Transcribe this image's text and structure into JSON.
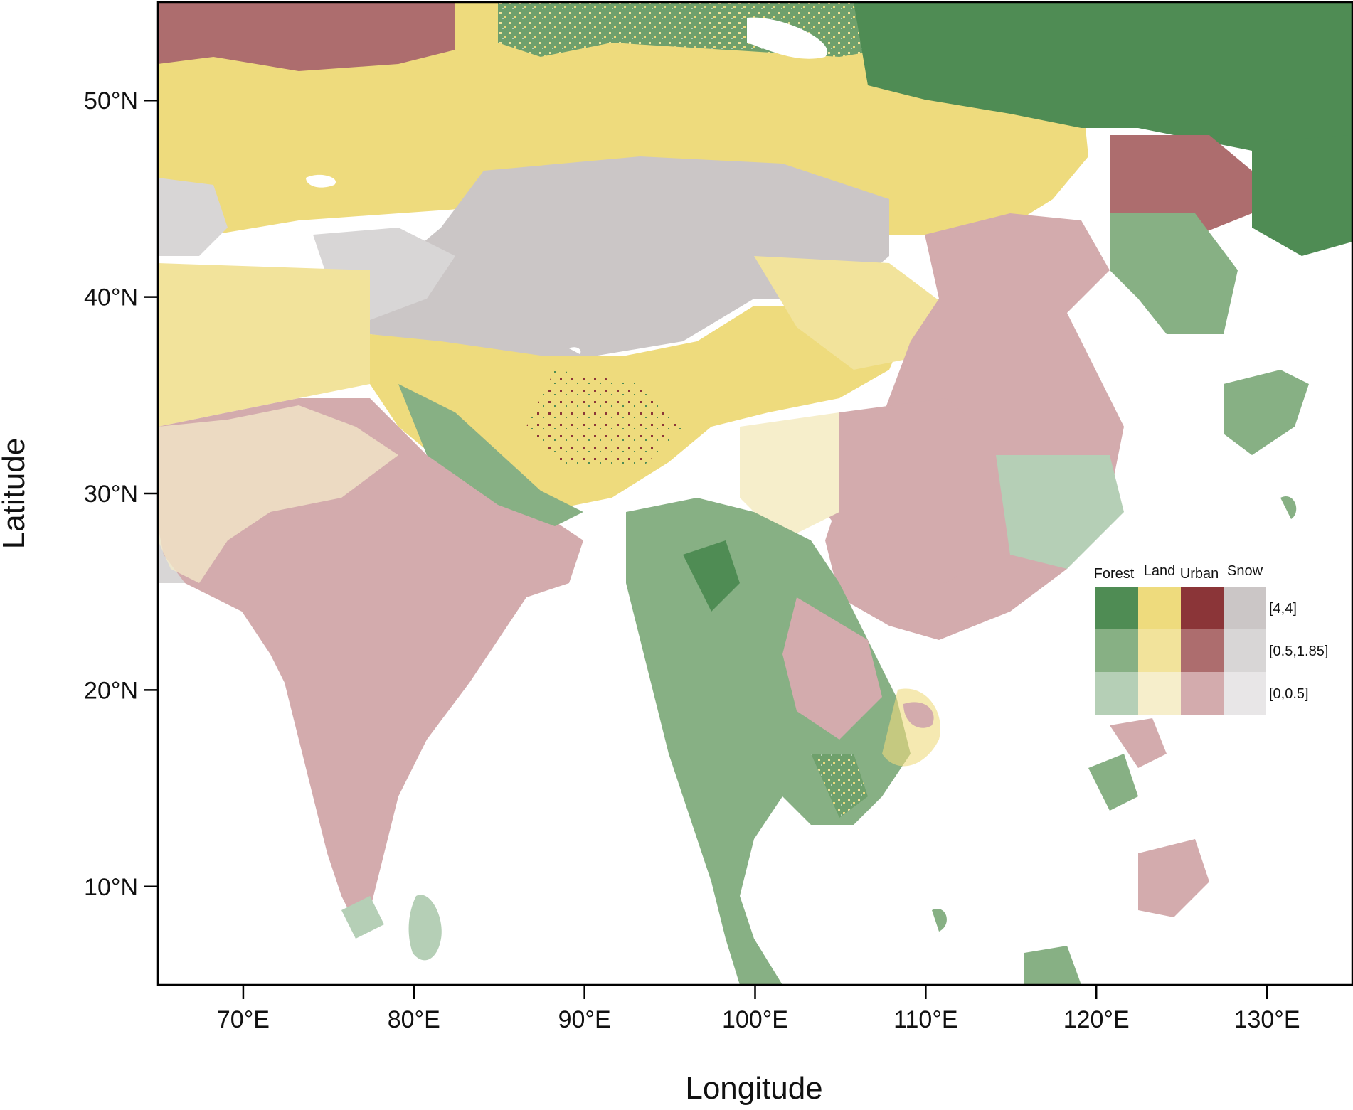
{
  "map": {
    "xlabel": "Longitude",
    "ylabel": "Latitude",
    "x_ticks": [
      "70°E",
      "80°E",
      "90°E",
      "100°E",
      "110°E",
      "120°E",
      "130°E"
    ],
    "y_ticks": [
      "10°N",
      "20°N",
      "30°N",
      "40°N",
      "50°N"
    ],
    "x_range": [
      65,
      135
    ],
    "y_range": [
      5,
      55
    ],
    "legend": {
      "columns": [
        "Forest",
        "Land",
        "Urban",
        "Snow"
      ],
      "rows": [
        "[4,4]",
        "[0.5,1.85]",
        "[0,0.5]"
      ],
      "colors": [
        [
          "#4f8c54",
          "#eedb7d",
          "#8b3538",
          "#cbc6c6"
        ],
        [
          "#87b084",
          "#f2e39b",
          "#ad6d6e",
          "#d8d6d6"
        ],
        [
          "#b5cfb6",
          "#f6eecb",
          "#d3abad",
          "#e8e6e7"
        ]
      ]
    }
  }
}
